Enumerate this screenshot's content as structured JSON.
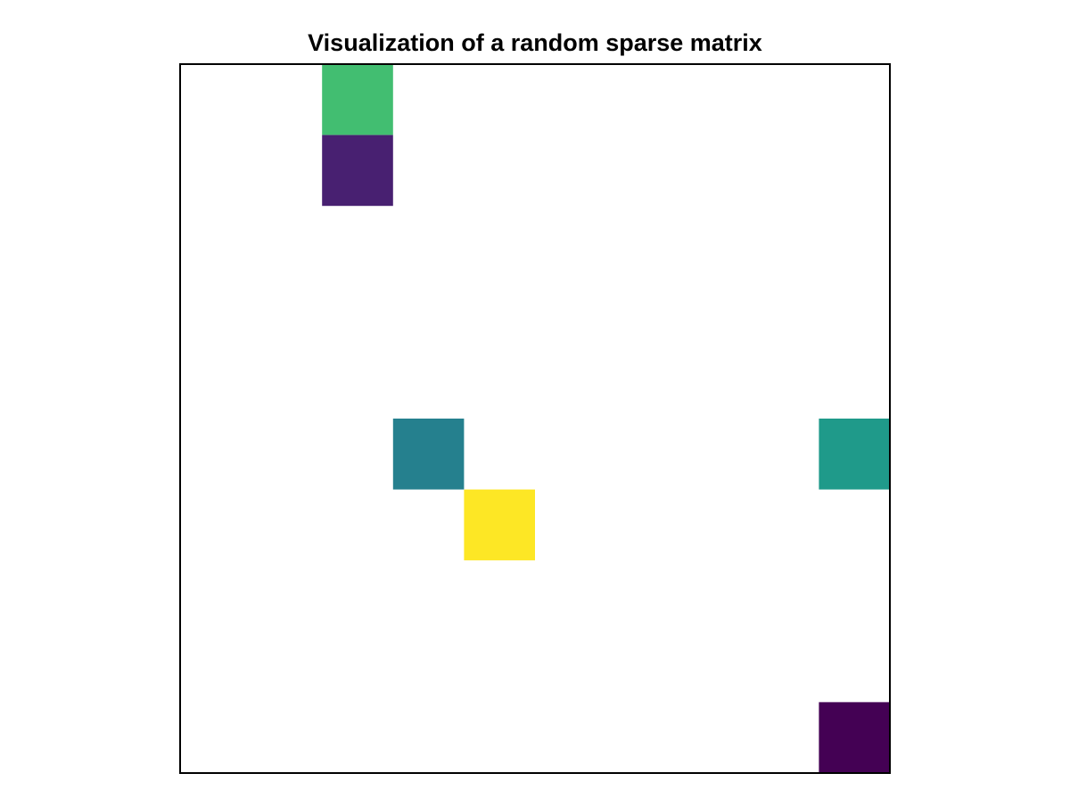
{
  "chart_data": {
    "type": "heatmap",
    "title": "Visualization of a random sparse matrix",
    "xlabel": "",
    "ylabel": "",
    "rows": 10,
    "cols": 10,
    "axis_ticks": false,
    "grid": false,
    "empty_color": "#ffffff",
    "colormap": "viridis",
    "vlim": [
      0.0,
      1.0
    ],
    "cells": [
      {
        "row": 0,
        "col": 2,
        "value": 0.72,
        "color": "#42be71"
      },
      {
        "row": 1,
        "col": 2,
        "value": 0.06,
        "color": "#482071"
      },
      {
        "row": 5,
        "col": 3,
        "value": 0.38,
        "color": "#25808e"
      },
      {
        "row": 5,
        "col": 9,
        "value": 0.52,
        "color": "#1f9a8a"
      },
      {
        "row": 6,
        "col": 4,
        "value": 1.0,
        "color": "#fde725"
      },
      {
        "row": 9,
        "col": 9,
        "value": 0.0,
        "color": "#440154"
      }
    ]
  }
}
